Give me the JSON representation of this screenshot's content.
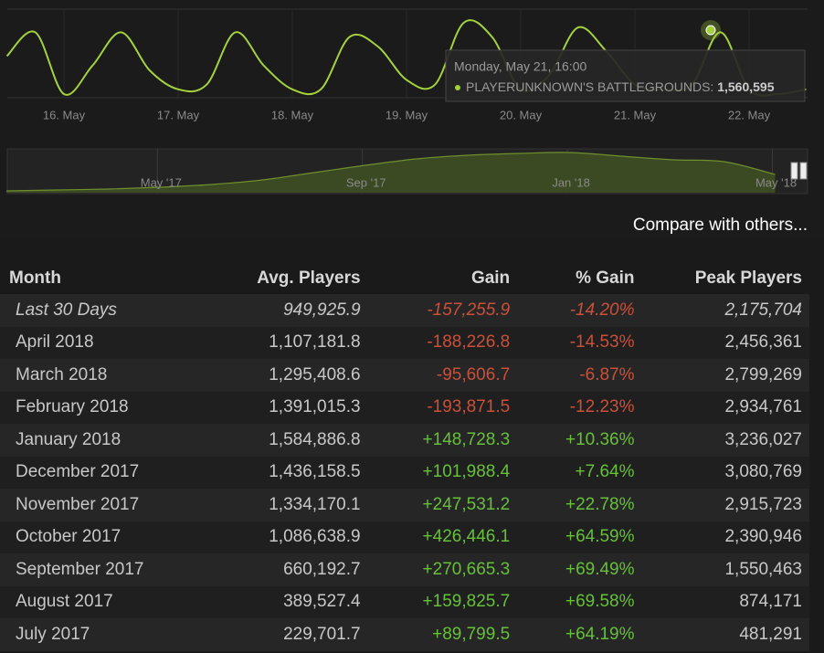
{
  "chart_data": [
    {
      "type": "line",
      "color": "#a4d13c",
      "categories": [
        null,
        null,
        "16. May",
        null,
        null,
        null,
        "17. May",
        null,
        null,
        null,
        "18. May",
        null,
        null,
        null,
        "19. May",
        null,
        null,
        null,
        "20. May",
        null,
        null,
        null,
        "21. May",
        null,
        null,
        null,
        "22. May",
        null,
        null
      ],
      "values": [
        1211000,
        1536000,
        691000,
        1081000,
        1536000,
        1016000,
        756000,
        821000,
        1536000,
        1081000,
        756000,
        756000,
        1471000,
        1341000,
        886000,
        821000,
        1666000,
        1471000,
        756000,
        951000,
        1601000,
        1276000,
        821000,
        756000,
        821000,
        1536000,
        756000,
        691000,
        756000
      ]
    },
    {
      "type": "area",
      "color": "#6f8f2e",
      "categories": [
        null,
        null,
        null,
        "May '17",
        null,
        null,
        null,
        "Sep '17",
        null,
        null,
        null,
        "Jan '18",
        null,
        null,
        null,
        "May '18"
      ],
      "values": [
        120000,
        180000,
        240000,
        360000,
        540000,
        840000,
        1320000,
        1800000,
        2220000,
        2460000,
        2580000,
        2640000,
        2400000,
        2160000,
        2040000,
        1200000
      ]
    }
  ],
  "tooltip": {
    "date": "Monday, May 21, 16:00",
    "game": "PLAYERUNKNOWN'S BATTLEGROUNDS:",
    "players": "1,560,595"
  },
  "compare_link": "Compare with others...",
  "table": {
    "headers": [
      "Month",
      "Avg. Players",
      "Gain",
      "% Gain",
      "Peak Players"
    ],
    "rows": [
      [
        "Last 30 Days",
        "949,925.9",
        "-157,255.9",
        "-14.20%",
        "2,175,704"
      ],
      [
        "April 2018",
        "1,107,181.8",
        "-188,226.8",
        "-14.53%",
        "2,456,361"
      ],
      [
        "March 2018",
        "1,295,408.6",
        "-95,606.7",
        "-6.87%",
        "2,799,269"
      ],
      [
        "February 2018",
        "1,391,015.3",
        "-193,871.5",
        "-12.23%",
        "2,934,761"
      ],
      [
        "January 2018",
        "1,584,886.8",
        "+148,728.3",
        "+10.36%",
        "3,236,027"
      ],
      [
        "December 2017",
        "1,436,158.5",
        "+101,988.4",
        "+7.64%",
        "3,080,769"
      ],
      [
        "November 2017",
        "1,334,170.1",
        "+247,531.2",
        "+22.78%",
        "2,915,723"
      ],
      [
        "October 2017",
        "1,086,638.9",
        "+426,446.1",
        "+64.59%",
        "2,390,946"
      ],
      [
        "September 2017",
        "660,192.7",
        "+270,665.3",
        "+69.49%",
        "1,550,463"
      ],
      [
        "August 2017",
        "389,527.4",
        "+159,825.7",
        "+69.58%",
        "874,171"
      ],
      [
        "July 2017",
        "229,701.7",
        "+89,799.5",
        "+64.19%",
        "481,291"
      ]
    ]
  }
}
